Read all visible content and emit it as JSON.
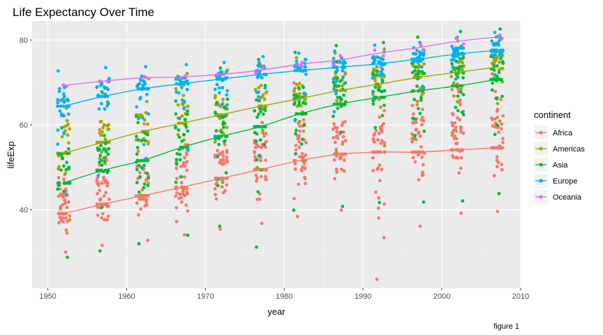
{
  "chart_data": {
    "type": "scatter",
    "title": "Life Expectancy Over Time",
    "xlabel": "year",
    "ylabel": "lifeExp",
    "caption": "figure 1",
    "xlim": [
      1948,
      2010
    ],
    "ylim": [
      21.5,
      84.5
    ],
    "x_ticks": [
      1950,
      1960,
      1970,
      1980,
      1990,
      2000,
      2010
    ],
    "y_ticks": [
      40,
      60,
      80
    ],
    "grid": true,
    "legend": {
      "title": "continent",
      "position": "right"
    },
    "years": [
      1952,
      1957,
      1962,
      1967,
      1972,
      1977,
      1982,
      1987,
      1992,
      1997,
      2002,
      2007
    ],
    "series": [
      {
        "name": "Africa",
        "color": "#F8766D",
        "n_points_per_year": 52,
        "smooth": [
          39.1,
          41.3,
          43.3,
          45.3,
          47.4,
          49.5,
          51.6,
          53.1,
          53.6,
          53.6,
          54.1,
          54.6
        ],
        "range_min": [
          30.0,
          31.6,
          32.8,
          34.1,
          35.4,
          36.8,
          38.4,
          39.9,
          23.6,
          36.1,
          39.2,
          39.6
        ],
        "range_max": [
          52.7,
          58.1,
          60.2,
          61.6,
          64.3,
          67.1,
          69.9,
          71.9,
          73.6,
          74.8,
          75.7,
          76.4
        ]
      },
      {
        "name": "Americas",
        "color": "#A3A500",
        "n_points_per_year": 25,
        "smooth": [
          53.3,
          55.9,
          58.4,
          60.4,
          62.4,
          64.4,
          66.2,
          68.1,
          69.6,
          71.2,
          72.4,
          73.6
        ],
        "range_min": [
          37.6,
          40.7,
          43.4,
          45.0,
          46.7,
          49.9,
          51.5,
          53.6,
          55.1,
          56.7,
          58.1,
          60.9
        ],
        "range_max": [
          68.8,
          70.0,
          71.3,
          72.1,
          72.9,
          74.2,
          75.8,
          76.9,
          77.9,
          78.6,
          79.8,
          80.7
        ]
      },
      {
        "name": "Asia",
        "color": "#00BA38",
        "n_points_per_year": 33,
        "smooth": [
          46.3,
          49.3,
          51.6,
          54.7,
          57.3,
          59.6,
          62.6,
          64.9,
          66.5,
          68.0,
          69.2,
          70.7
        ],
        "range_min": [
          28.8,
          30.3,
          32.0,
          34.0,
          36.1,
          31.2,
          39.9,
          40.8,
          41.7,
          41.8,
          42.1,
          43.8
        ],
        "range_max": [
          65.4,
          67.8,
          69.4,
          71.4,
          73.4,
          75.4,
          77.1,
          78.7,
          79.4,
          80.7,
          82.0,
          82.6
        ]
      },
      {
        "name": "Europe",
        "color": "#00B0F6",
        "n_points_per_year": 30,
        "smooth": [
          64.4,
          66.7,
          68.5,
          69.7,
          70.8,
          71.9,
          72.8,
          73.6,
          74.4,
          75.5,
          76.7,
          77.6
        ],
        "range_min": [
          43.6,
          48.1,
          52.1,
          54.3,
          57.0,
          59.5,
          61.0,
          63.1,
          66.1,
          68.8,
          70.8,
          71.8
        ],
        "range_max": [
          72.7,
          73.5,
          73.7,
          74.2,
          74.7,
          76.1,
          76.9,
          77.4,
          78.8,
          79.4,
          80.6,
          81.8
        ]
      },
      {
        "name": "Oceania",
        "color": "#E76BF3",
        "n_points_per_year": 2,
        "smooth": [
          69.3,
          70.3,
          71.1,
          71.3,
          71.9,
          72.9,
          74.3,
          75.3,
          76.9,
          78.2,
          79.7,
          80.7
        ],
        "range_min": [
          69.1,
          70.3,
          70.9,
          71.1,
          71.9,
          72.2,
          74.0,
          74.3,
          76.3,
          77.6,
          79.1,
          80.2
        ],
        "range_max": [
          69.4,
          70.3,
          71.2,
          71.5,
          71.9,
          73.5,
          74.7,
          76.3,
          77.6,
          78.8,
          80.4,
          81.2
        ]
      }
    ]
  }
}
